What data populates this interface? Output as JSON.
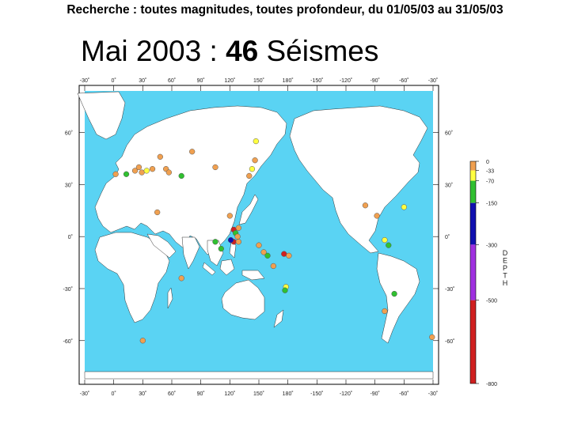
{
  "header": {
    "query": "Recherche : toutes magnitudes, toutes profondeur, du 01/05/03 au 31/05/03"
  },
  "map": {
    "title_prefix": "Mai 2003 : ",
    "count": "46",
    "title_suffix": " Séismes",
    "ocean_color": "#5ad3f3",
    "land_color": "#ffffff",
    "lon_labels": [
      "-30˚",
      "0˚",
      "30˚",
      "60˚",
      "90˚",
      "120˚",
      "150˚",
      "180˚",
      "-150˚",
      "-120˚",
      "-90˚",
      "-60˚",
      "-30˚"
    ],
    "lat_labels_left": [
      "60˚",
      "30˚",
      "0˚",
      "-30˚",
      "-60˚"
    ],
    "lat_labels_right": [
      "60˚",
      "30˚",
      "0˚",
      "-30˚",
      "-60˚"
    ],
    "lon_start": -30,
    "lon_span": 360,
    "lat_top": 84,
    "lat_bottom": -82
  },
  "legend": {
    "title": "DEPTH",
    "levels": [
      {
        "label": "0",
        "color": "#f0a050"
      },
      {
        "label": "-33",
        "color": "#ffff40"
      },
      {
        "label": "-70",
        "color": "#30c030"
      },
      {
        "label": "-150",
        "color": "#1010b0"
      },
      {
        "label": "-300",
        "color": "#a030e0"
      },
      {
        "label": "-500",
        "color": "#d02020"
      },
      {
        "label": "-800",
        "color": ""
      }
    ]
  },
  "earthquakes": [
    {
      "lon": -31,
      "lat": -58,
      "depth": "0-33"
    },
    {
      "lon": 2,
      "lat": 36,
      "depth": "0-33"
    },
    {
      "lon": 22,
      "lat": 38,
      "depth": "0-33"
    },
    {
      "lon": 26,
      "lat": 40,
      "depth": "0-33"
    },
    {
      "lon": 29,
      "lat": 37,
      "depth": "0-33"
    },
    {
      "lon": 13,
      "lat": 36,
      "depth": "70-150"
    },
    {
      "lon": 34,
      "lat": 38,
      "depth": "33-70"
    },
    {
      "lon": 45,
      "lat": 14,
      "depth": "0-33"
    },
    {
      "lon": 40,
      "lat": 39,
      "depth": "0-33"
    },
    {
      "lon": 48,
      "lat": 46,
      "depth": "0-33"
    },
    {
      "lon": 54,
      "lat": 39,
      "depth": "0-33"
    },
    {
      "lon": 57,
      "lat": 37,
      "depth": "0-33"
    },
    {
      "lon": 70,
      "lat": 35,
      "depth": "70-150"
    },
    {
      "lon": 81,
      "lat": 49,
      "depth": "0-33"
    },
    {
      "lon": 105,
      "lat": 40,
      "depth": "0-33"
    },
    {
      "lon": 70,
      "lat": -24,
      "depth": "0-33"
    },
    {
      "lon": 30,
      "lat": -60,
      "depth": "0-33"
    },
    {
      "lon": 146,
      "lat": 44,
      "depth": "0-33"
    },
    {
      "lon": 147,
      "lat": 55,
      "depth": "33-70"
    },
    {
      "lon": 143,
      "lat": 39,
      "depth": "33-70"
    },
    {
      "lon": 140,
      "lat": 35,
      "depth": "0-33"
    },
    {
      "lon": 120,
      "lat": 12,
      "depth": "0-33"
    },
    {
      "lon": 124,
      "lat": 4,
      "depth": "500-800"
    },
    {
      "lon": 126,
      "lat": 2,
      "depth": "70-150"
    },
    {
      "lon": 128,
      "lat": 0,
      "depth": "0-33"
    },
    {
      "lon": 124,
      "lat": -3,
      "depth": "500-800"
    },
    {
      "lon": 121,
      "lat": -2,
      "depth": "150-300"
    },
    {
      "lon": 129,
      "lat": -3,
      "depth": "0-33"
    },
    {
      "lon": 129,
      "lat": 5,
      "depth": "0-33"
    },
    {
      "lon": 105,
      "lat": -3,
      "depth": "70-150"
    },
    {
      "lon": 111,
      "lat": -7,
      "depth": "70-150"
    },
    {
      "lon": 150,
      "lat": -5,
      "depth": "0-33"
    },
    {
      "lon": 155,
      "lat": -9,
      "depth": "0-33"
    },
    {
      "lon": 159,
      "lat": -11,
      "depth": "70-150"
    },
    {
      "lon": 165,
      "lat": -17,
      "depth": "0-33"
    },
    {
      "lon": 176,
      "lat": -10,
      "depth": "500-800"
    },
    {
      "lon": 181,
      "lat": -11,
      "depth": "0-33"
    },
    {
      "lon": 178,
      "lat": -29,
      "depth": "33-70"
    },
    {
      "lon": 177,
      "lat": -31,
      "depth": "70-150"
    },
    {
      "lon": -100,
      "lat": 18,
      "depth": "0-33"
    },
    {
      "lon": -88,
      "lat": 12,
      "depth": "0-33"
    },
    {
      "lon": -60,
      "lat": 17,
      "depth": "33-70"
    },
    {
      "lon": -80,
      "lat": -2,
      "depth": "33-70"
    },
    {
      "lon": -76,
      "lat": -5,
      "depth": "70-150"
    },
    {
      "lon": -70,
      "lat": -33,
      "depth": "70-150"
    },
    {
      "lon": -80,
      "lat": -43,
      "depth": "0-33"
    }
  ]
}
